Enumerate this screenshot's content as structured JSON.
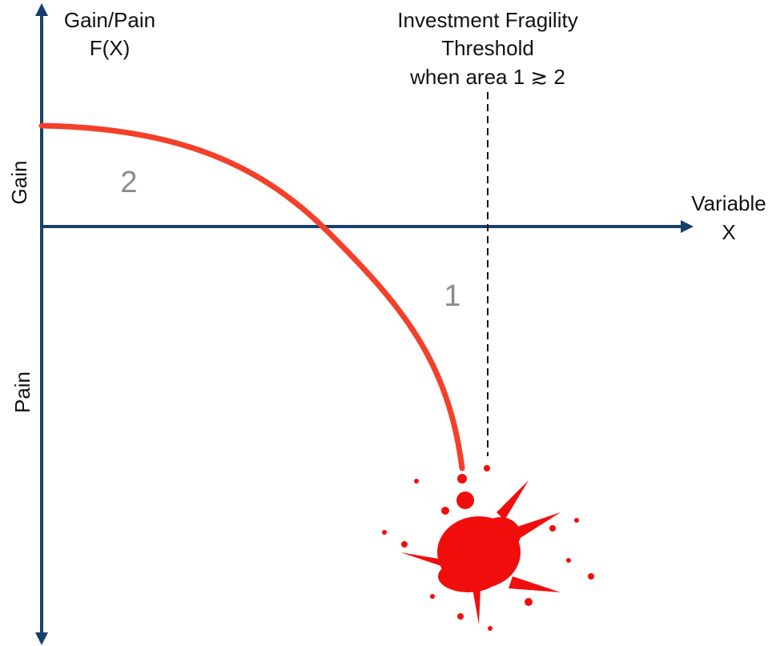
{
  "y_axis": {
    "label": [
      "Gain/Pain",
      "F(X)"
    ],
    "upper": "Gain",
    "lower": "Pain"
  },
  "x_axis": {
    "label": [
      "Variable",
      "X"
    ]
  },
  "threshold": {
    "label": [
      "Investment Fragility",
      "Threshold",
      "when area 1 ≳ 2"
    ]
  },
  "regions": [
    "1",
    "2"
  ]
}
